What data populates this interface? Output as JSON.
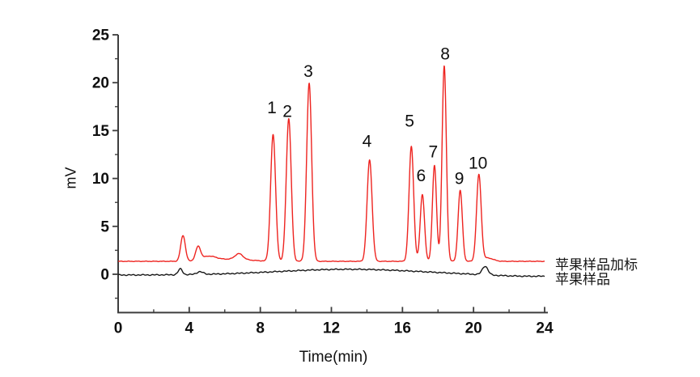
{
  "figure": {
    "background": "#ffffff",
    "axis_color": "#3d3d3d",
    "tick_label_color": "#0f0f0f"
  },
  "chart_data": {
    "type": "line",
    "title": "",
    "xlabel": "Time(min)",
    "ylabel": "mV",
    "xlim": [
      0,
      24
    ],
    "ylim": [
      -4,
      25
    ],
    "xticks": [
      0,
      4,
      8,
      12,
      16,
      20,
      24
    ],
    "yticks": [
      0,
      5,
      10,
      15,
      20,
      25
    ],
    "x_minor_ticks": [
      2,
      6,
      10,
      14,
      18,
      22
    ],
    "y_minor_ticks": [
      -2.5,
      2.5,
      7.5,
      12.5,
      17.5,
      22.5
    ],
    "grid": false,
    "legend_position": "right of trace ends",
    "series": [
      {
        "name": "苹果样品加标",
        "color": "#ee2420",
        "baseline_mv": 1.35,
        "peaks": [
          {
            "t": 3.65,
            "amp": 2.7,
            "sigma": 0.13
          },
          {
            "t": 4.5,
            "amp": 1.4,
            "sigma": 0.14
          },
          {
            "t": 5.1,
            "amp": 0.45,
            "sigma": 0.4
          },
          {
            "t": 6.4,
            "amp": 0.22,
            "sigma": 1.0
          },
          {
            "t": 6.8,
            "amp": 0.6,
            "sigma": 0.22
          },
          {
            "t": 8.72,
            "amp": 13.2,
            "sigma": 0.14
          },
          {
            "t": 9.6,
            "amp": 14.9,
            "sigma": 0.14
          },
          {
            "t": 10.75,
            "amp": 18.6,
            "sigma": 0.14
          },
          {
            "t": 14.15,
            "amp": 10.6,
            "sigma": 0.14
          },
          {
            "t": 16.5,
            "amp": 12.0,
            "sigma": 0.13
          },
          {
            "t": 17.12,
            "amp": 7.0,
            "sigma": 0.12
          },
          {
            "t": 17.8,
            "amp": 10.0,
            "sigma": 0.115
          },
          {
            "t": 18.35,
            "amp": 20.4,
            "sigma": 0.12
          },
          {
            "t": 19.25,
            "amp": 7.4,
            "sigma": 0.12
          },
          {
            "t": 20.3,
            "amp": 9.0,
            "sigma": 0.13
          },
          {
            "t": 20.8,
            "amp": 0.35,
            "sigma": 0.3
          }
        ]
      },
      {
        "name": "苹果样品",
        "color": "#161616",
        "baseline_mv": -0.08,
        "peaks": [
          {
            "t": 3.5,
            "amp": 0.6,
            "sigma": 0.12
          },
          {
            "t": 4.6,
            "amp": 0.28,
            "sigma": 0.18
          },
          {
            "t": 13.0,
            "amp": 0.6,
            "sigma": 4.0
          },
          {
            "t": 20.65,
            "amp": 0.9,
            "sigma": 0.16
          },
          {
            "t": 23.0,
            "amp": -0.15,
            "sigma": 2.0
          }
        ]
      }
    ],
    "peak_annotations": [
      {
        "label": "1",
        "t": 8.65,
        "mv": 17.4
      },
      {
        "label": "2",
        "t": 9.52,
        "mv": 17.0
      },
      {
        "label": "3",
        "t": 10.7,
        "mv": 21.2
      },
      {
        "label": "4",
        "t": 14.0,
        "mv": 13.9
      },
      {
        "label": "5",
        "t": 16.4,
        "mv": 16.0
      },
      {
        "label": "6",
        "t": 17.05,
        "mv": 10.3
      },
      {
        "label": "7",
        "t": 17.73,
        "mv": 12.8
      },
      {
        "label": "8",
        "t": 18.4,
        "mv": 23.0
      },
      {
        "label": "9",
        "t": 19.2,
        "mv": 10.0
      },
      {
        "label": "10",
        "t": 20.25,
        "mv": 11.6
      }
    ]
  }
}
